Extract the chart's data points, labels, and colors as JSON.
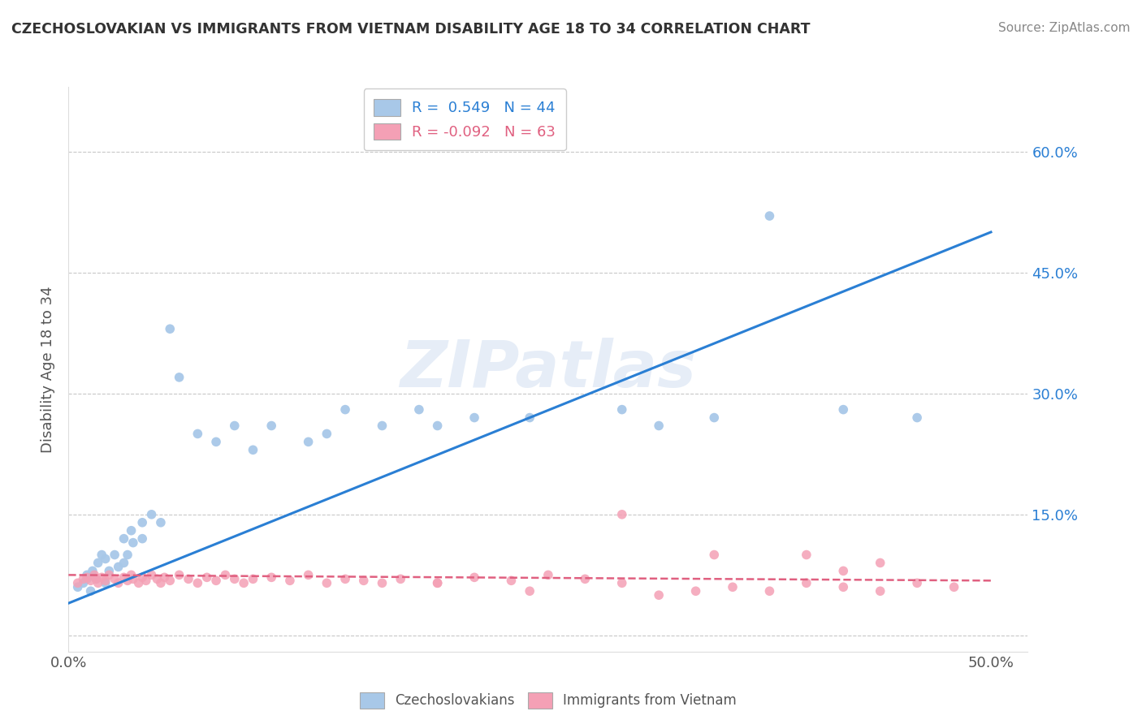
{
  "title": "CZECHOSLOVAKIAN VS IMMIGRANTS FROM VIETNAM DISABILITY AGE 18 TO 34 CORRELATION CHART",
  "source": "Source: ZipAtlas.com",
  "ylabel": "Disability Age 18 to 34",
  "xlim": [
    0.0,
    0.52
  ],
  "ylim": [
    -0.02,
    0.68
  ],
  "xticks": [
    0.0,
    0.1,
    0.2,
    0.3,
    0.4,
    0.5
  ],
  "xticklabels": [
    "0.0%",
    "",
    "",
    "",
    "",
    "50.0%"
  ],
  "yticks": [
    0.0,
    0.15,
    0.3,
    0.45,
    0.6
  ],
  "yticklabels": [
    "",
    "15.0%",
    "30.0%",
    "45.0%",
    "60.0%"
  ],
  "blue_R": 0.549,
  "blue_N": 44,
  "pink_R": -0.092,
  "pink_N": 63,
  "blue_color": "#a8c8e8",
  "pink_color": "#f4a0b5",
  "blue_line_color": "#2a7fd4",
  "pink_line_color": "#e06080",
  "watermark": "ZIPatlas",
  "legend_label_blue": "Czechoslovakians",
  "legend_label_pink": "Immigrants from Vietnam",
  "blue_line_x0": 0.0,
  "blue_line_y0": 0.04,
  "blue_line_x1": 0.5,
  "blue_line_y1": 0.5,
  "pink_line_x0": 0.0,
  "pink_line_y0": 0.075,
  "pink_line_x1": 0.5,
  "pink_line_y1": 0.068,
  "blue_scatter_x": [
    0.005,
    0.008,
    0.01,
    0.01,
    0.012,
    0.013,
    0.015,
    0.016,
    0.018,
    0.02,
    0.02,
    0.022,
    0.025,
    0.027,
    0.03,
    0.03,
    0.032,
    0.034,
    0.035,
    0.04,
    0.04,
    0.045,
    0.05,
    0.055,
    0.06,
    0.07,
    0.08,
    0.09,
    0.1,
    0.11,
    0.13,
    0.14,
    0.15,
    0.17,
    0.19,
    0.2,
    0.22,
    0.25,
    0.3,
    0.32,
    0.35,
    0.38,
    0.42,
    0.46
  ],
  "blue_scatter_y": [
    0.06,
    0.065,
    0.07,
    0.075,
    0.055,
    0.08,
    0.07,
    0.09,
    0.1,
    0.065,
    0.095,
    0.08,
    0.1,
    0.085,
    0.09,
    0.12,
    0.1,
    0.13,
    0.115,
    0.14,
    0.12,
    0.15,
    0.14,
    0.38,
    0.32,
    0.25,
    0.24,
    0.26,
    0.23,
    0.26,
    0.24,
    0.25,
    0.28,
    0.26,
    0.28,
    0.26,
    0.27,
    0.27,
    0.28,
    0.26,
    0.27,
    0.52,
    0.28,
    0.27
  ],
  "pink_scatter_x": [
    0.005,
    0.008,
    0.01,
    0.012,
    0.014,
    0.015,
    0.016,
    0.018,
    0.02,
    0.022,
    0.025,
    0.027,
    0.03,
    0.032,
    0.034,
    0.035,
    0.038,
    0.04,
    0.042,
    0.045,
    0.048,
    0.05,
    0.052,
    0.055,
    0.06,
    0.065,
    0.07,
    0.075,
    0.08,
    0.085,
    0.09,
    0.095,
    0.1,
    0.11,
    0.12,
    0.13,
    0.14,
    0.15,
    0.16,
    0.17,
    0.18,
    0.2,
    0.22,
    0.24,
    0.26,
    0.28,
    0.3,
    0.32,
    0.34,
    0.36,
    0.38,
    0.4,
    0.42,
    0.44,
    0.46,
    0.48,
    0.3,
    0.35,
    0.4,
    0.42,
    0.44,
    0.2,
    0.25
  ],
  "pink_scatter_y": [
    0.065,
    0.07,
    0.072,
    0.068,
    0.075,
    0.07,
    0.065,
    0.072,
    0.068,
    0.075,
    0.07,
    0.065,
    0.072,
    0.068,
    0.075,
    0.07,
    0.065,
    0.072,
    0.068,
    0.075,
    0.07,
    0.065,
    0.072,
    0.068,
    0.075,
    0.07,
    0.065,
    0.072,
    0.068,
    0.075,
    0.07,
    0.065,
    0.07,
    0.072,
    0.068,
    0.075,
    0.065,
    0.07,
    0.068,
    0.065,
    0.07,
    0.065,
    0.072,
    0.068,
    0.075,
    0.07,
    0.065,
    0.05,
    0.055,
    0.06,
    0.055,
    0.065,
    0.06,
    0.055,
    0.065,
    0.06,
    0.15,
    0.1,
    0.1,
    0.08,
    0.09,
    0.065,
    0.055
  ]
}
